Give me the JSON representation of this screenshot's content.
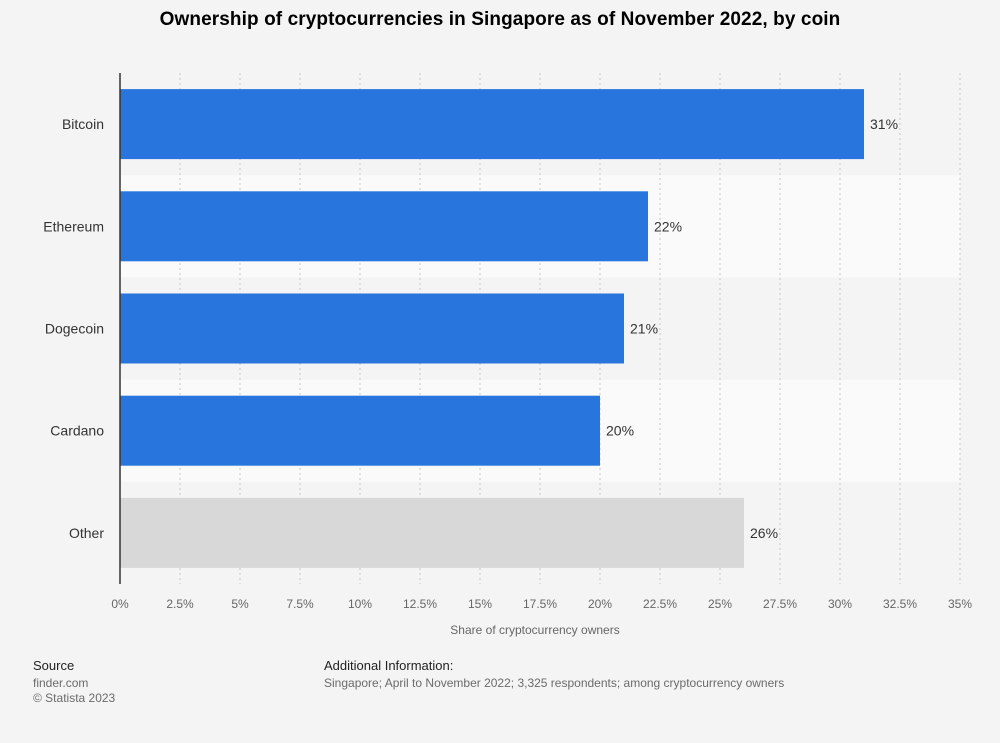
{
  "title": "Ownership of cryptocurrencies in Singapore as of November 2022, by coin",
  "chart_data": {
    "type": "bar",
    "orientation": "horizontal",
    "categories": [
      "Bitcoin",
      "Ethereum",
      "Dogecoin",
      "Cardano",
      "Other"
    ],
    "values": [
      31,
      22,
      21,
      20,
      26
    ],
    "value_labels": [
      "31%",
      "22%",
      "21%",
      "20%",
      "26%"
    ],
    "xlabel": "Share of cryptocurrency owners",
    "ylabel": "",
    "xlim": [
      0,
      35
    ],
    "xticks": [
      0,
      2.5,
      5,
      7.5,
      10,
      12.5,
      15,
      17.5,
      20,
      22.5,
      25,
      27.5,
      30,
      32.5,
      35
    ],
    "xtick_labels": [
      "0%",
      "2.5%",
      "5%",
      "7.5%",
      "10%",
      "12.5%",
      "15%",
      "17.5%",
      "20%",
      "22.5%",
      "25%",
      "27.5%",
      "30%",
      "32.5%",
      "35%"
    ],
    "grid": "vertical dashed",
    "colors": {
      "main": "#2876dd",
      "other": "#d8d8d8"
    }
  },
  "footer": {
    "source_heading": "Source",
    "source_lines": [
      "finder.com",
      "© Statista 2023"
    ],
    "info_heading": "Additional Information:",
    "info_text": "Singapore; April to November 2022; 3,325 respondents; among cryptocurrency owners"
  }
}
